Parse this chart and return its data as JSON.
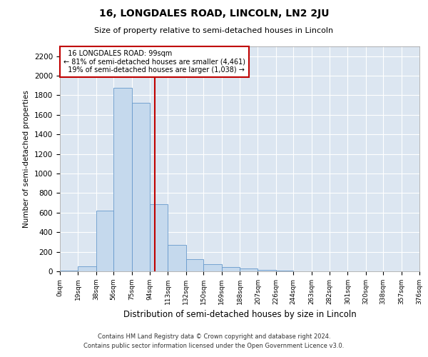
{
  "title": "16, LONGDALES ROAD, LINCOLN, LN2 2JU",
  "subtitle": "Size of property relative to semi-detached houses in Lincoln",
  "xlabel": "Distribution of semi-detached houses by size in Lincoln",
  "ylabel": "Number of semi-detached properties",
  "property_label": "16 LONGDALES ROAD: 99sqm",
  "pct_smaller": "81% of semi-detached houses are smaller (4,461)",
  "pct_larger": "19% of semi-detached houses are larger (1,038)",
  "property_size_sqm": 99,
  "bin_edges": [
    0,
    19,
    38,
    56,
    75,
    94,
    113,
    132,
    150,
    169,
    188,
    207,
    226,
    244,
    263,
    282,
    301,
    320,
    338,
    357,
    376
  ],
  "bar_values": [
    8,
    50,
    620,
    1880,
    1720,
    690,
    270,
    125,
    70,
    42,
    28,
    18,
    5,
    0,
    0,
    0,
    0,
    0,
    0,
    0
  ],
  "bar_color": "#c5d9ed",
  "bar_edge_color": "#6699cc",
  "property_line_color": "#c00000",
  "annotation_box_color": "#c00000",
  "background_color": "#dce6f1",
  "grid_color": "#ffffff",
  "ylim": [
    0,
    2300
  ],
  "yticks": [
    0,
    200,
    400,
    600,
    800,
    1000,
    1200,
    1400,
    1600,
    1800,
    2000,
    2200
  ],
  "footnote1": "Contains HM Land Registry data © Crown copyright and database right 2024.",
  "footnote2": "Contains public sector information licensed under the Open Government Licence v3.0."
}
